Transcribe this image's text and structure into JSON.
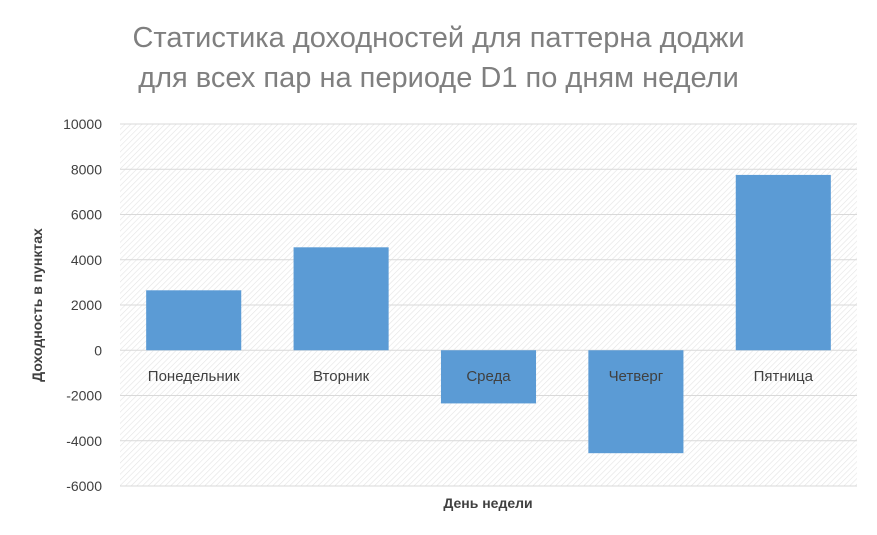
{
  "chart_data": {
    "type": "bar",
    "title_lines": [
      "Статистика доходностей для паттерна доджи",
      "для всех пар на периоде D1 по дням недели"
    ],
    "xlabel": "День недели",
    "ylabel": "Доходность в пунктах",
    "categories": [
      "Понедельник",
      "Вторник",
      "Среда",
      "Четверг",
      "Пятница"
    ],
    "values": [
      2650,
      4550,
      -2350,
      -4550,
      7750
    ],
    "ylim": [
      -6000,
      10000
    ],
    "yticks": [
      "10000",
      "8000",
      "6000",
      "4000",
      "2000",
      "0",
      "-2000",
      "-4000",
      "-6000"
    ],
    "grid": true,
    "bar_color": "#5b9bd5",
    "legend": "none"
  }
}
